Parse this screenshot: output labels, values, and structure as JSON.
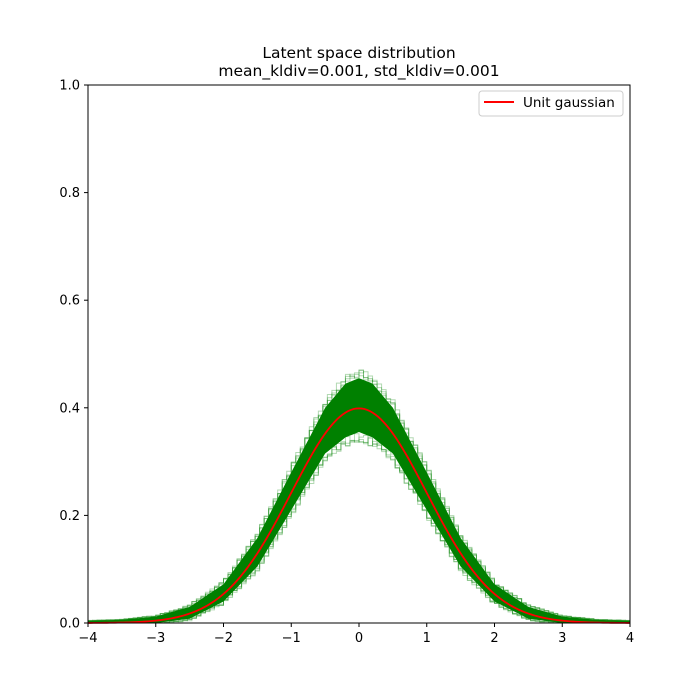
{
  "chart_data": {
    "type": "line",
    "title": [
      "Latent space distribution",
      "mean_kldiv=0.001, std_kldiv=0.001"
    ],
    "xlabel": "",
    "ylabel": "",
    "xlim": [
      -4,
      4
    ],
    "ylim": [
      0,
      1.0
    ],
    "x_ticks": [
      -4,
      -3,
      -2,
      -1,
      0,
      1,
      2,
      3,
      4
    ],
    "x_tick_labels": [
      "−4",
      "−3",
      "−2",
      "−1",
      "0",
      "1",
      "2",
      "3",
      "4"
    ],
    "y_ticks": [
      0,
      0.2,
      0.4,
      0.6,
      0.8,
      1.0
    ],
    "y_tick_labels": [
      "0.0",
      "0.2",
      "0.4",
      "0.6",
      "0.8",
      "1.0"
    ],
    "grid": false,
    "legend": {
      "position": "top-right",
      "entries": [
        "Unit gaussian"
      ]
    },
    "series": [
      {
        "name": "Unit gaussian",
        "style": "line",
        "color": "#ff0000",
        "x": [
          -4.0,
          -3.5,
          -3.0,
          -2.5,
          -2.0,
          -1.5,
          -1.0,
          -0.5,
          0.0,
          0.5,
          1.0,
          1.5,
          2.0,
          2.5,
          3.0,
          3.5,
          4.0
        ],
        "y": [
          0.0001,
          0.0009,
          0.0044,
          0.0175,
          0.054,
          0.1295,
          0.242,
          0.3521,
          0.3989,
          0.3521,
          0.242,
          0.1295,
          0.054,
          0.0175,
          0.0044,
          0.0009,
          0.0001
        ]
      },
      {
        "style": "step-histogram-envelope",
        "color": "#008000",
        "x": [
          -4.0,
          -3.5,
          -3.0,
          -2.5,
          -2.0,
          -1.5,
          -1.0,
          -0.5,
          -0.2,
          0.0,
          0.2,
          0.5,
          1.0,
          1.5,
          2.0,
          2.5,
          3.0,
          3.5,
          4.0
        ],
        "y_low": [
          0.0,
          0.0,
          0.0,
          0.008,
          0.04,
          0.105,
          0.21,
          0.315,
          0.345,
          0.355,
          0.345,
          0.315,
          0.21,
          0.105,
          0.04,
          0.008,
          0.0,
          0.0,
          0.0
        ],
        "y_high": [
          0.004,
          0.006,
          0.012,
          0.03,
          0.072,
          0.158,
          0.28,
          0.4,
          0.445,
          0.455,
          0.445,
          0.4,
          0.28,
          0.158,
          0.072,
          0.03,
          0.012,
          0.006,
          0.004
        ]
      }
    ]
  }
}
